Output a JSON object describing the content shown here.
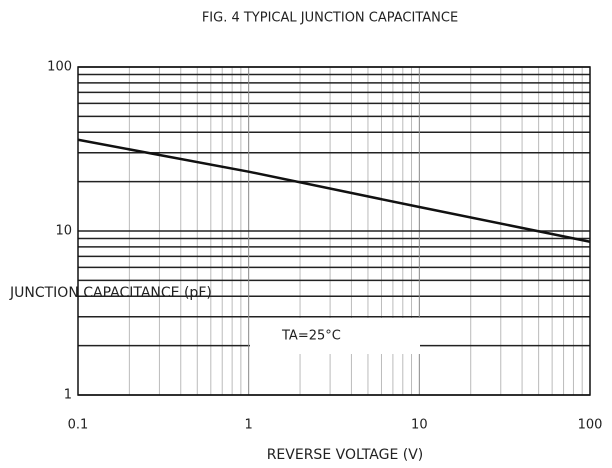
{
  "chart_data": {
    "type": "line",
    "title": "FIG. 4 TYPICAL JUNCTION CAPACITANCE",
    "xlabel": "REVERSE VOLTAGE (V)",
    "ylabel": "JUNCTION CAPACITANCE (pF)",
    "annotation": "TA=25°C",
    "x": [
      0.1,
      1,
      10,
      100
    ],
    "series": [
      {
        "name": "Junction capacitance",
        "color": "#111111",
        "values": [
          36,
          23,
          14,
          8.6
        ]
      }
    ],
    "xlim": [
      0.1,
      100
    ],
    "ylim": [
      1,
      100
    ],
    "xticks": [
      0.1,
      1,
      10,
      100
    ],
    "yticks": [
      1,
      10,
      100
    ],
    "xscale": "log",
    "yscale": "log",
    "grid": true
  }
}
